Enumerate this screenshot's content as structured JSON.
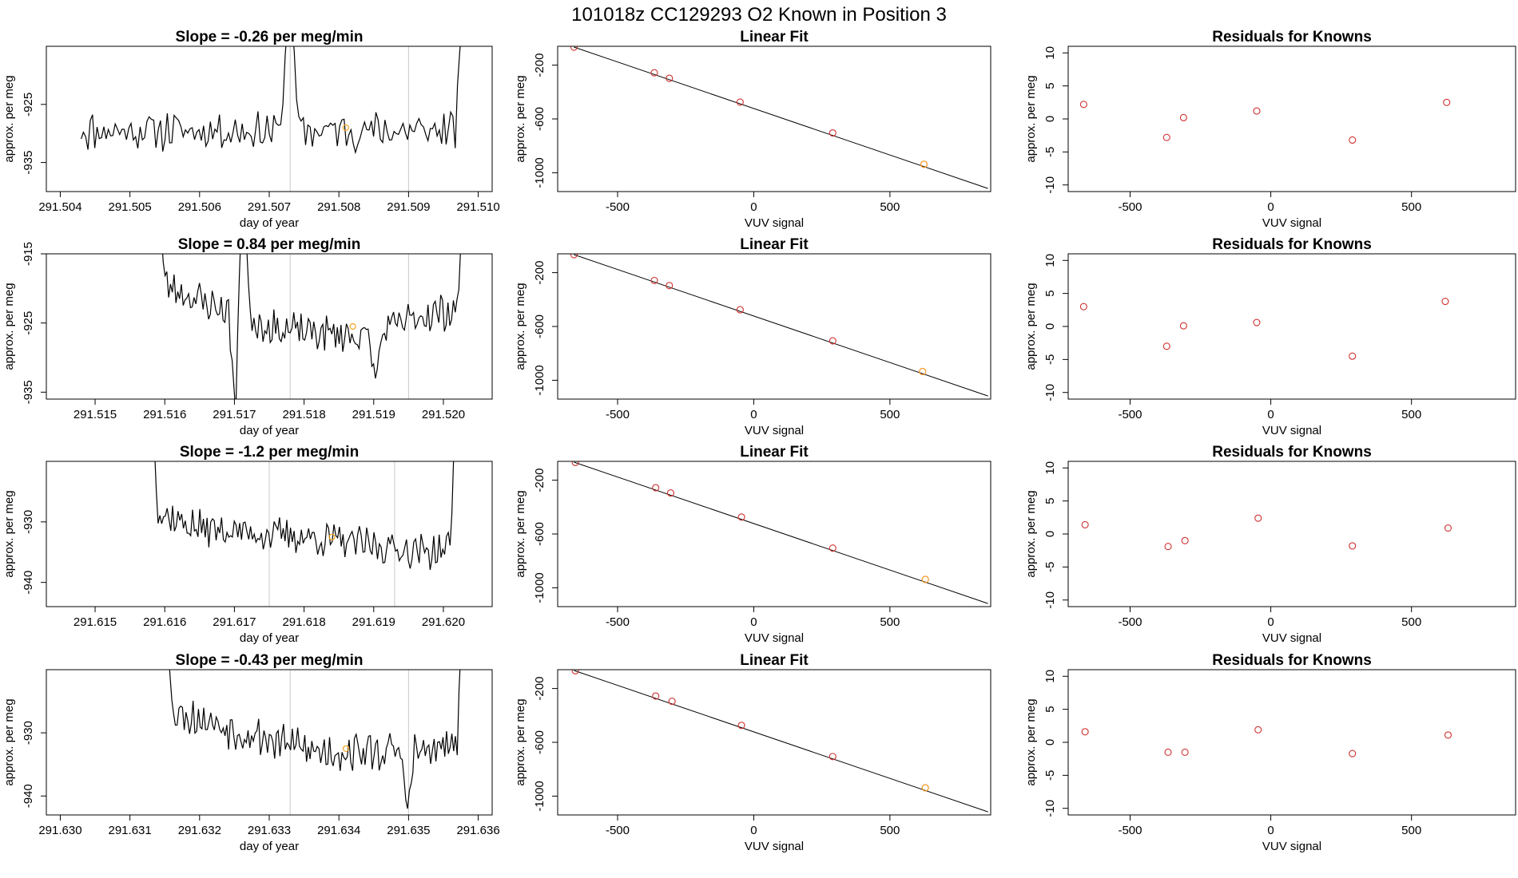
{
  "suptitle": "101018z      CC129293    O2 Known in Position  3",
  "colors": {
    "line": "#000000",
    "points": "#d03030",
    "current_point": "#f5a623",
    "marker_line": "#c8c8c8"
  },
  "chart_data": [
    {
      "panel": "time-series-1",
      "type": "line",
      "title": "Slope =  -0.26  per meg/min",
      "xlabel": "day of year",
      "ylabel": "approx. per meg",
      "xlim": [
        291.5038,
        291.5102
      ],
      "ylim": [
        -940,
        -915
      ],
      "xticks": [
        "291.504",
        "291.505",
        "291.506",
        "291.507",
        "291.508",
        "291.509",
        "291.510"
      ],
      "yticks": [
        "-925",
        "-935"
      ],
      "markers": [
        291.5073,
        291.509
      ],
      "highlight": {
        "x": 291.5081,
        "y": -929
      },
      "series": {
        "x_start": 291.5043,
        "x_end": 291.5098,
        "seed": 11,
        "base": [
          [
            0,
            -929.5
          ],
          [
            1,
            -929.5
          ]
        ],
        "spikes": [
          [
            0.545,
            -905
          ],
          [
            1.0,
            -905
          ]
        ],
        "spike_half_width": 3,
        "amplitude": 2.8
      }
    },
    {
      "panel": "linear-fit-1",
      "type": "scatter",
      "title": "Linear Fit",
      "xlabel": "VUV signal",
      "ylabel": "approx. per meg",
      "xlim": [
        -720,
        870
      ],
      "ylim": [
        -1140,
        -60
      ],
      "xticks": [
        "-500",
        "0",
        "500"
      ],
      "yticks": [
        "-200",
        "-600",
        "-1000"
      ],
      "fit": {
        "x": [
          -660,
          860
        ],
        "y": [
          -66,
          -1117
        ]
      },
      "points": [
        [
          -660,
          -66
        ],
        [
          -365,
          -257
        ],
        [
          -310,
          -298
        ],
        [
          -50,
          -475
        ],
        [
          290,
          -704
        ],
        [
          625,
          -937
        ]
      ],
      "highlight_index": 5
    },
    {
      "panel": "residuals-1",
      "type": "scatter",
      "title": "Residuals for Knowns",
      "xlabel": "VUV signal",
      "ylabel": "approx. per meg",
      "xlim": [
        -720,
        870
      ],
      "ylim": [
        -11,
        11
      ],
      "xticks": [
        "-500",
        "0",
        "500"
      ],
      "yticks": [
        "10",
        "5",
        "0",
        "-5",
        "-10"
      ],
      "points": [
        [
          -665,
          2.2
        ],
        [
          -370,
          -2.8
        ],
        [
          -310,
          0.2
        ],
        [
          -50,
          1.2
        ],
        [
          290,
          -3.2
        ],
        [
          625,
          2.5
        ]
      ]
    },
    {
      "panel": "time-series-2",
      "type": "line",
      "title": "Slope =  0.84  per meg/min",
      "xlabel": "day of year",
      "ylabel": "approx. per meg",
      "xlim": [
        291.5143,
        291.5207
      ],
      "ylim": [
        -936,
        -915
      ],
      "xticks": [
        "291.515",
        "291.516",
        "291.517",
        "291.518",
        "291.519",
        "291.520"
      ],
      "yticks": [
        "-915",
        "-925",
        "-935"
      ],
      "markers": [
        291.5178,
        291.5195
      ],
      "highlight": {
        "x": 291.5187,
        "y": -925.5
      },
      "series": {
        "x_start": 291.5159,
        "x_end": 291.5203,
        "seed": 23,
        "base": [
          [
            0,
            -919
          ],
          [
            0.15,
            -922
          ],
          [
            0.4,
            -926
          ],
          [
            0.7,
            -927
          ],
          [
            0.85,
            -924
          ],
          [
            1,
            -923
          ]
        ],
        "spikes": [
          [
            0.0,
            -905
          ],
          [
            0.257,
            -938
          ],
          [
            0.28,
            -905
          ],
          [
            0.71,
            -933
          ],
          [
            1.0,
            -905
          ]
        ],
        "spike_half_width": 3,
        "amplitude": 2.2
      }
    },
    {
      "panel": "linear-fit-2",
      "type": "scatter",
      "title": "Linear Fit",
      "xlabel": "VUV signal",
      "ylabel": "approx. per meg",
      "xlim": [
        -720,
        870
      ],
      "ylim": [
        -1140,
        -60
      ],
      "xticks": [
        "-500",
        "0",
        "500"
      ],
      "yticks": [
        "-200",
        "-600",
        "-1000"
      ],
      "fit": {
        "x": [
          -660,
          860
        ],
        "y": [
          -66,
          -1117
        ]
      },
      "points": [
        [
          -660,
          -66
        ],
        [
          -365,
          -258
        ],
        [
          -310,
          -296
        ],
        [
          -50,
          -476
        ],
        [
          290,
          -707
        ],
        [
          620,
          -935
        ]
      ],
      "highlight_index": 5
    },
    {
      "panel": "residuals-2",
      "type": "scatter",
      "title": "Residuals for Knowns",
      "xlabel": "VUV signal",
      "ylabel": "approx. per meg",
      "xlim": [
        -720,
        870
      ],
      "ylim": [
        -11,
        11
      ],
      "xticks": [
        "-500",
        "0",
        "500"
      ],
      "yticks": [
        "10",
        "5",
        "0",
        "-5",
        "-10"
      ],
      "points": [
        [
          -665,
          3.0
        ],
        [
          -370,
          -3.0
        ],
        [
          -310,
          0.1
        ],
        [
          -50,
          0.6
        ],
        [
          290,
          -4.5
        ],
        [
          620,
          3.8
        ]
      ]
    },
    {
      "panel": "time-series-3",
      "type": "line",
      "title": "Slope =  -1.2  per meg/min",
      "xlabel": "day of year",
      "ylabel": "approx. per meg",
      "xlim": [
        291.6143,
        291.6207
      ],
      "ylim": [
        -944,
        -920
      ],
      "xticks": [
        "291.615",
        "291.616",
        "291.617",
        "291.618",
        "291.619",
        "291.620"
      ],
      "yticks": [
        "-930",
        "-940"
      ],
      "markers": [
        291.6175,
        291.6193
      ],
      "highlight": {
        "x": 291.6184,
        "y": -932.5
      },
      "series": {
        "x_start": 291.6158,
        "x_end": 291.6202,
        "seed": 37,
        "base": [
          [
            0,
            -928
          ],
          [
            0.15,
            -931
          ],
          [
            0.5,
            -932.5
          ],
          [
            0.9,
            -935
          ],
          [
            1,
            -934
          ]
        ],
        "spikes": [
          [
            0.0,
            -905
          ],
          [
            1.0,
            -905
          ]
        ],
        "spike_half_width": 3,
        "amplitude": 2.4
      }
    },
    {
      "panel": "linear-fit-3",
      "type": "scatter",
      "title": "Linear Fit",
      "xlabel": "VUV signal",
      "ylabel": "approx. per meg",
      "xlim": [
        -720,
        870
      ],
      "ylim": [
        -1140,
        -60
      ],
      "xticks": [
        "-500",
        "0",
        "500"
      ],
      "yticks": [
        "-200",
        "-600",
        "-1000"
      ],
      "fit": {
        "x": [
          -660,
          860
        ],
        "y": [
          -66,
          -1117
        ]
      },
      "points": [
        [
          -655,
          -68
        ],
        [
          -360,
          -256
        ],
        [
          -305,
          -295
        ],
        [
          -45,
          -474
        ],
        [
          290,
          -705
        ],
        [
          630,
          -938
        ]
      ],
      "highlight_index": 5
    },
    {
      "panel": "residuals-3",
      "type": "scatter",
      "title": "Residuals for Knowns",
      "xlabel": "VUV signal",
      "ylabel": "approx. per meg",
      "xlim": [
        -720,
        870
      ],
      "ylim": [
        -11,
        11
      ],
      "xticks": [
        "-500",
        "0",
        "500"
      ],
      "yticks": [
        "10",
        "5",
        "0",
        "-5",
        "-10"
      ],
      "points": [
        [
          -660,
          1.4
        ],
        [
          -365,
          -1.9
        ],
        [
          -305,
          -1.0
        ],
        [
          -45,
          2.4
        ],
        [
          290,
          -1.8
        ],
        [
          630,
          0.9
        ]
      ]
    },
    {
      "panel": "time-series-4",
      "type": "line",
      "title": "Slope =  -0.43  per meg/min",
      "xlabel": "day of year",
      "ylabel": "approx. per meg",
      "xlim": [
        291.6298,
        291.6362
      ],
      "ylim": [
        -943,
        -920
      ],
      "xticks": [
        "291.630",
        "291.631",
        "291.632",
        "291.633",
        "291.634",
        "291.635",
        "291.636"
      ],
      "yticks": [
        "-930",
        "-940"
      ],
      "markers": [
        291.6333,
        291.635
      ],
      "highlight": {
        "x": 291.6341,
        "y": -932.5
      },
      "series": {
        "x_start": 291.6315,
        "x_end": 291.6358,
        "seed": 53,
        "base": [
          [
            0,
            -926
          ],
          [
            0.2,
            -929
          ],
          [
            0.5,
            -933
          ],
          [
            0.9,
            -933
          ],
          [
            1,
            -931
          ]
        ],
        "spikes": [
          [
            0.0,
            -905
          ],
          [
            0.81,
            -942
          ],
          [
            1.0,
            -905
          ]
        ],
        "spike_half_width": 3,
        "amplitude": 2.6
      }
    },
    {
      "panel": "linear-fit-4",
      "type": "scatter",
      "title": "Linear Fit",
      "xlabel": "VUV signal",
      "ylabel": "approx. per meg",
      "xlim": [
        -720,
        870
      ],
      "ylim": [
        -1140,
        -60
      ],
      "xticks": [
        "-500",
        "0",
        "500"
      ],
      "yticks": [
        "-200",
        "-600",
        "-1000"
      ],
      "fit": {
        "x": [
          -660,
          860
        ],
        "y": [
          -66,
          -1117
        ]
      },
      "points": [
        [
          -655,
          -68
        ],
        [
          -360,
          -256
        ],
        [
          -300,
          -295
        ],
        [
          -45,
          -474
        ],
        [
          290,
          -706
        ],
        [
          630,
          -938
        ]
      ],
      "highlight_index": 5
    },
    {
      "panel": "residuals-4",
      "type": "scatter",
      "title": "Residuals for Knowns",
      "xlabel": "VUV signal",
      "ylabel": "approx. per meg",
      "xlim": [
        -720,
        870
      ],
      "ylim": [
        -11,
        11
      ],
      "xticks": [
        "-500",
        "0",
        "500"
      ],
      "yticks": [
        "10",
        "5",
        "0",
        "-5",
        "-10"
      ],
      "points": [
        [
          -660,
          1.6
        ],
        [
          -365,
          -1.5
        ],
        [
          -305,
          -1.5
        ],
        [
          -45,
          1.9
        ],
        [
          290,
          -1.7
        ],
        [
          630,
          1.1
        ]
      ]
    }
  ]
}
